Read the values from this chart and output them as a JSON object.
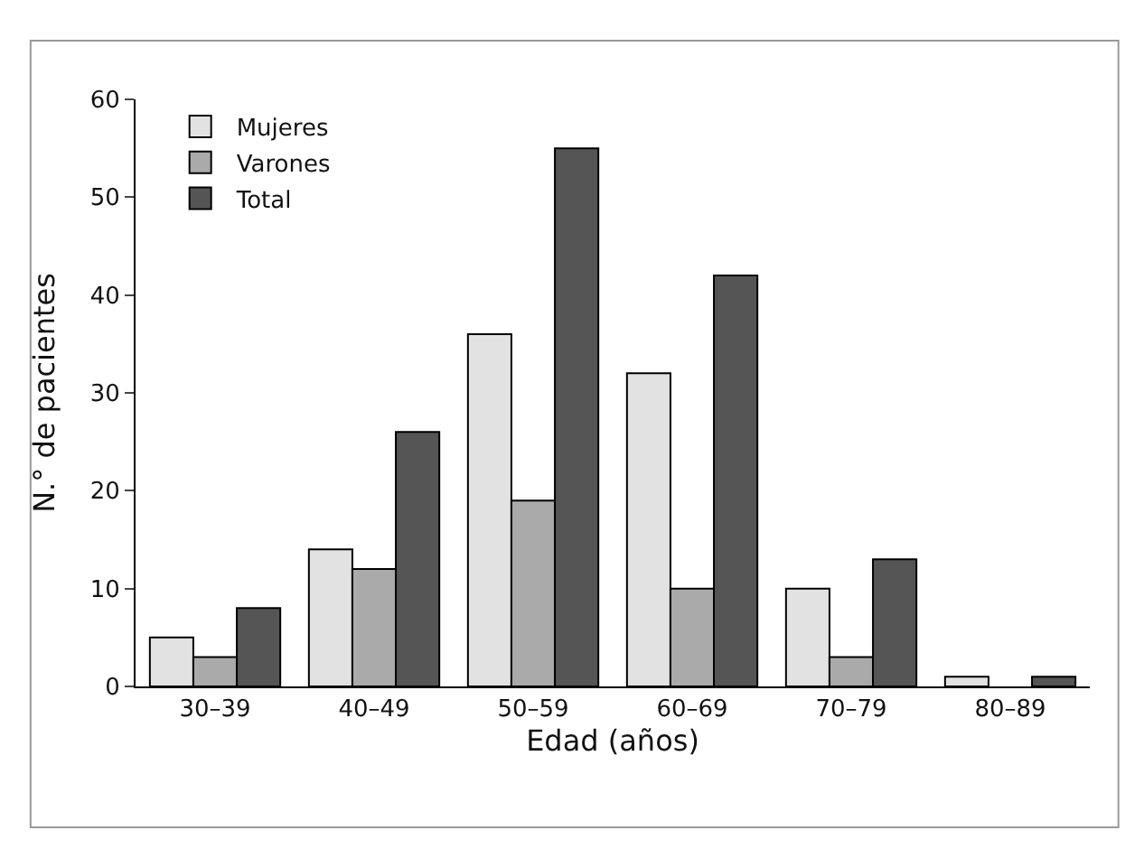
{
  "chart_data": {
    "type": "bar",
    "xlabel": "Edad (años)",
    "ylabel": "N.° de pacientes",
    "categories": [
      "30–39",
      "40–49",
      "50–59",
      "60–69",
      "70–79",
      "80–89"
    ],
    "series": [
      {
        "name": "Mujeres",
        "color": "#e2e2e2",
        "values": [
          5,
          14,
          36,
          32,
          10,
          1
        ]
      },
      {
        "name": "Varones",
        "color": "#aaaaaa",
        "values": [
          3,
          12,
          19,
          10,
          3,
          0
        ]
      },
      {
        "name": "Total",
        "color": "#555555",
        "values": [
          8,
          26,
          55,
          42,
          13,
          1
        ]
      }
    ],
    "ylim": [
      0,
      60
    ],
    "yticks": [
      0,
      10,
      20,
      30,
      40,
      50,
      60
    ],
    "legend": "top left"
  }
}
